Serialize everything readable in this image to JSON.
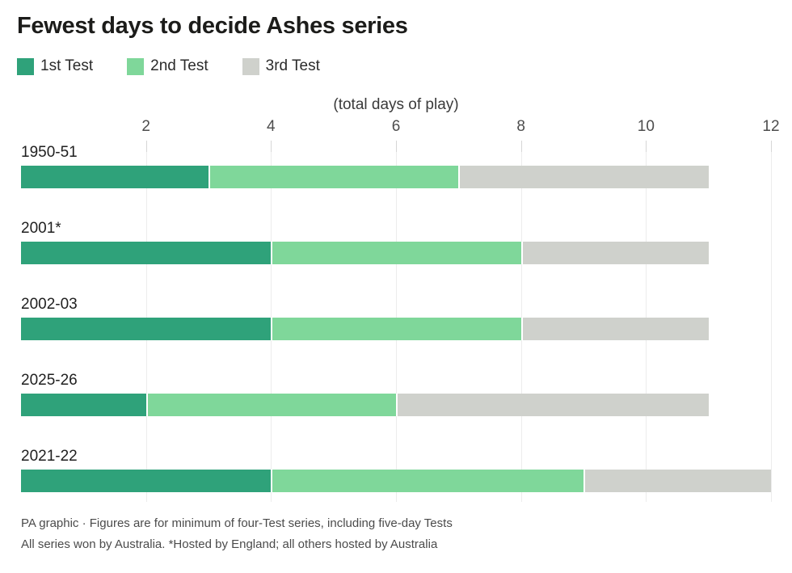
{
  "footnotes": {
    "line1": "PA graphic · Figures are for minimum of four-Test series, including five-day Tests",
    "line2": "All series won by Australia. *Hosted by England; all others hosted by Australia"
  },
  "chart_data": {
    "type": "bar",
    "orientation": "horizontal",
    "stacked": true,
    "title": "Fewest days to decide Ashes series",
    "xlabel": "(total days of play)",
    "ylabel": "",
    "categories": [
      "1950-51",
      "2001*",
      "2002-03",
      "2025-26",
      "2021-22"
    ],
    "series": [
      {
        "name": "1st Test",
        "color": "#2fa27a",
        "values": [
          3,
          4,
          4,
          2,
          4
        ]
      },
      {
        "name": "2nd Test",
        "color": "#7fd79a",
        "values": [
          4,
          4,
          4,
          4,
          5
        ]
      },
      {
        "name": "3rd Test",
        "color": "#cfd1cc",
        "values": [
          4,
          3,
          3,
          5,
          3
        ]
      }
    ],
    "totals": [
      11,
      11,
      11,
      11,
      12
    ],
    "xlim": [
      0,
      12
    ],
    "xticks": [
      2,
      4,
      6,
      8,
      10,
      12
    ],
    "grid": true,
    "legend_position": "top"
  }
}
